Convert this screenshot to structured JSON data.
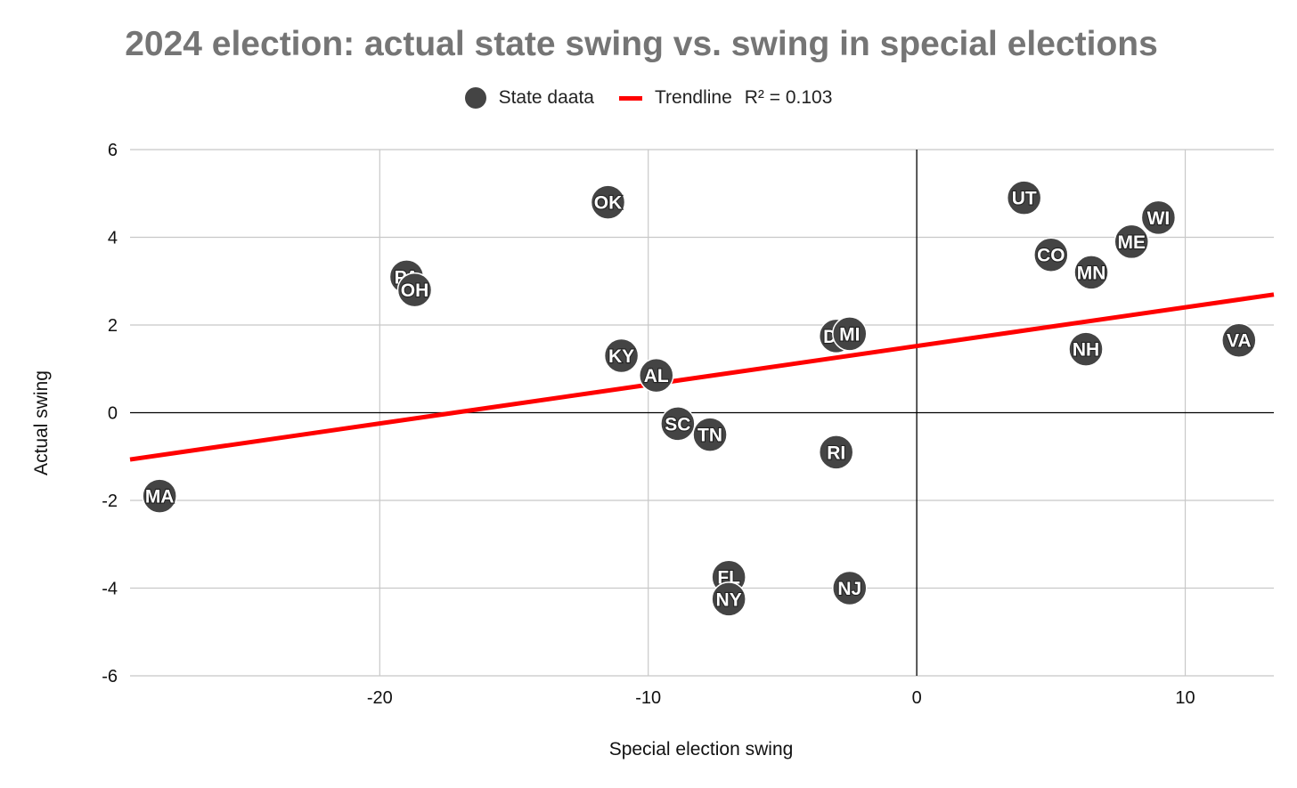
{
  "chart_data": {
    "type": "scatter",
    "title": "2024 election: actual state swing vs. swing in special elections",
    "xlabel": "Special election swing",
    "ylabel": "Actual swing",
    "xlim": [
      -29.3,
      13.3
    ],
    "ylim": [
      -6,
      6
    ],
    "xticks": [
      -20,
      -10,
      0,
      10
    ],
    "yticks": [
      6,
      4,
      2,
      0,
      -2,
      -4,
      -6
    ],
    "grid": true,
    "legend_position": "top-center",
    "series": [
      {
        "name": "State daata",
        "color": "#444444",
        "points": [
          {
            "label": "MA",
            "x": -28.2,
            "y": -1.9
          },
          {
            "label": "PA",
            "x": -19.0,
            "y": 3.1
          },
          {
            "label": "OH",
            "x": -18.7,
            "y": 2.8
          },
          {
            "label": "OK",
            "x": -11.5,
            "y": 4.8
          },
          {
            "label": "KY",
            "x": -11.0,
            "y": 1.3
          },
          {
            "label": "AL",
            "x": -9.7,
            "y": 0.85
          },
          {
            "label": "SC",
            "x": -8.9,
            "y": -0.25
          },
          {
            "label": "TN",
            "x": -7.7,
            "y": -0.5
          },
          {
            "label": "FL",
            "x": -7.0,
            "y": -3.75
          },
          {
            "label": "NY",
            "x": -7.0,
            "y": -4.25
          },
          {
            "label": "DE",
            "x": -3.0,
            "y": 1.75
          },
          {
            "label": "MI",
            "x": -2.5,
            "y": 1.8
          },
          {
            "label": "RI",
            "x": -3.0,
            "y": -0.9
          },
          {
            "label": "NJ",
            "x": -2.5,
            "y": -4.0
          },
          {
            "label": "UT",
            "x": 4.0,
            "y": 4.9
          },
          {
            "label": "CO",
            "x": 5.0,
            "y": 3.6
          },
          {
            "label": "MN",
            "x": 6.5,
            "y": 3.2
          },
          {
            "label": "NH",
            "x": 6.3,
            "y": 1.45
          },
          {
            "label": "ME",
            "x": 8.0,
            "y": 3.9
          },
          {
            "label": "WI",
            "x": 9.0,
            "y": 4.45
          },
          {
            "label": "VA",
            "x": 12.0,
            "y": 1.65
          }
        ]
      },
      {
        "name": "Trendline",
        "r2_text": "R² = 0.103",
        "color": "#ff0000",
        "slope": 0.0883,
        "intercept": 1.52
      }
    ]
  }
}
